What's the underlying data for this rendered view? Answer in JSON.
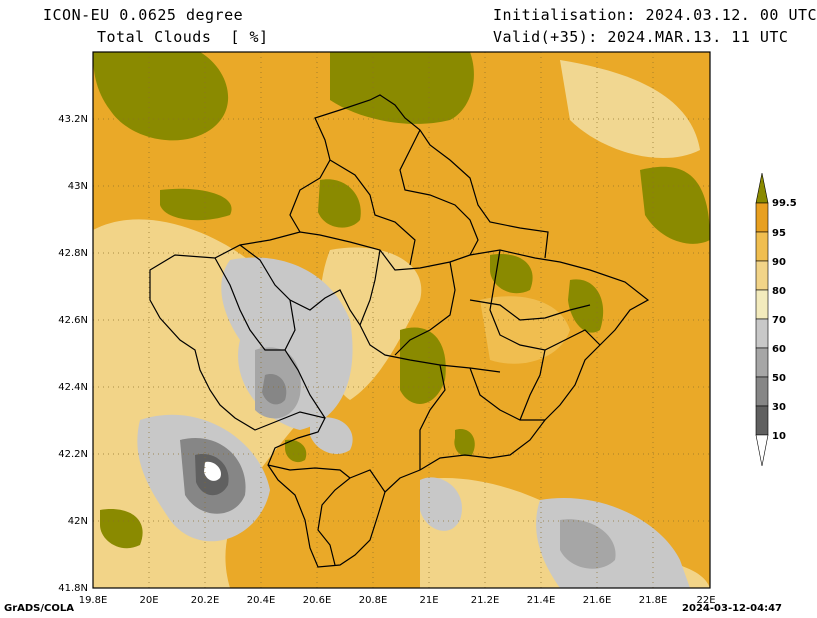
{
  "header": {
    "model": "ICON-EU 0.0625 degree",
    "variable": "Total Clouds  [ %]",
    "init": "Initialisation: 2024.03.12. 00 UTC",
    "valid": "Valid(+35): 2024.MAR.13. 11 UTC"
  },
  "footer": {
    "credit": "GrADS/COLA",
    "timestamp": "2024-03-12-04:47"
  },
  "axes": {
    "lon_ticks": [
      "19.8E",
      "20E",
      "20.2E",
      "20.4E",
      "20.6E",
      "20.8E",
      "21E",
      "21.2E",
      "21.4E",
      "21.6E",
      "21.8E",
      "22E"
    ],
    "lat_ticks": [
      "41.8N",
      "42N",
      "42.2N",
      "42.4N",
      "42.6N",
      "42.8N",
      "43N",
      "43.2N"
    ],
    "lon_range": [
      19.8,
      22.0
    ],
    "lat_range": [
      41.8,
      43.4
    ]
  },
  "colorbar": {
    "labels": [
      "99.5",
      "95",
      "90",
      "80",
      "70",
      "60",
      "50",
      "30",
      "10"
    ],
    "colors": [
      "#8a8a00",
      "#e8a020",
      "#f0be50",
      "#f2d488",
      "#f3ebbd",
      "#c8c8c8",
      "#a6a6a6",
      "#868686",
      "#606060",
      "#3a3a3a",
      "#ffffff"
    ]
  }
}
